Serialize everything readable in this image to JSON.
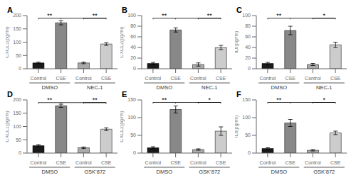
{
  "chart_data": [
    {
      "type": "bar",
      "title": "A",
      "y_label": "CXCL1(pg/ml)",
      "categories": [
        "Control",
        "CSE",
        "Control",
        "CSE"
      ],
      "groups": [
        "DMSO",
        "NEC-1"
      ],
      "values": [
        22,
        173,
        22,
        93
      ],
      "errors": [
        3,
        8,
        3,
        5
      ],
      "colors": [
        "#1a1a1a",
        "#888888",
        "#aaaaaa",
        "#cccccc"
      ],
      "ylim": [
        0,
        200
      ],
      "yticks": [
        0,
        50,
        100,
        150,
        200
      ],
      "significance": {
        "y": 190,
        "labels": [
          "**",
          "**"
        ]
      },
      "grid": false
    },
    {
      "type": "bar",
      "title": "B",
      "y_label": "CXCL2(pg/ml)",
      "categories": [
        "Control",
        "CSE",
        "Control",
        "CSE"
      ],
      "groups": [
        "DMSO",
        "NEC-1"
      ],
      "values": [
        10,
        73,
        8,
        40
      ],
      "errors": [
        2,
        4,
        3,
        4
      ],
      "colors": [
        "#1a1a1a",
        "#888888",
        "#aaaaaa",
        "#cccccc"
      ],
      "ylim": [
        0,
        100
      ],
      "yticks": [
        0,
        20,
        40,
        60,
        80,
        100
      ],
      "significance": {
        "y": 95,
        "labels": [
          "**",
          "**"
        ]
      },
      "grid": false
    },
    {
      "type": "bar",
      "title": "C",
      "y_label": "IL6(pg/ml)",
      "categories": [
        "Control",
        "CSE",
        "Control",
        "CSE"
      ],
      "groups": [
        "DMSO",
        "NEC-1"
      ],
      "values": [
        10,
        72,
        8,
        45
      ],
      "errors": [
        2,
        8,
        2,
        5
      ],
      "colors": [
        "#1a1a1a",
        "#888888",
        "#aaaaaa",
        "#cccccc"
      ],
      "ylim": [
        0,
        100
      ],
      "yticks": [
        0,
        20,
        40,
        60,
        80,
        100
      ],
      "significance": {
        "y": 95,
        "labels": [
          "**",
          "*"
        ]
      },
      "grid": false
    },
    {
      "type": "bar",
      "title": "D",
      "y_label": "CXCL1(pg/ml)",
      "categories": [
        "Control",
        "CSE",
        "Control",
        "CSE"
      ],
      "groups": [
        "DMSO",
        "GSK’872"
      ],
      "values": [
        28,
        178,
        20,
        90
      ],
      "errors": [
        4,
        6,
        3,
        5
      ],
      "colors": [
        "#1a1a1a",
        "#888888",
        "#aaaaaa",
        "#cccccc"
      ],
      "ylim": [
        0,
        200
      ],
      "yticks": [
        0,
        50,
        100,
        150,
        200
      ],
      "significance": {
        "y": 190,
        "labels": [
          "**",
          "**"
        ]
      },
      "grid": false
    },
    {
      "type": "bar",
      "title": "E",
      "y_label": "CXCL2(pg/ml)",
      "categories": [
        "Control",
        "CSE",
        "Control",
        "CSE"
      ],
      "groups": [
        "DMSO",
        "GSK’872"
      ],
      "values": [
        15,
        123,
        10,
        62
      ],
      "errors": [
        3,
        10,
        2,
        12
      ],
      "colors": [
        "#1a1a1a",
        "#888888",
        "#aaaaaa",
        "#cccccc"
      ],
      "ylim": [
        0,
        150
      ],
      "yticks": [
        0,
        50,
        100,
        150
      ],
      "significance": {
        "y": 143,
        "labels": [
          "**",
          "*"
        ]
      },
      "grid": false
    },
    {
      "type": "bar",
      "title": "F",
      "y_label": "IL6(pg/ml)",
      "categories": [
        "Control",
        "CSE",
        "Control",
        "CSE"
      ],
      "groups": [
        "DMSO",
        "GSK’872"
      ],
      "values": [
        13,
        85,
        8,
        57
      ],
      "errors": [
        2,
        10,
        2,
        5
      ],
      "colors": [
        "#1a1a1a",
        "#888888",
        "#aaaaaa",
        "#cccccc"
      ],
      "ylim": [
        0,
        150
      ],
      "yticks": [
        0,
        50,
        100,
        150
      ],
      "significance": {
        "y": 143,
        "labels": [
          "**",
          "*"
        ]
      },
      "grid": false
    }
  ]
}
